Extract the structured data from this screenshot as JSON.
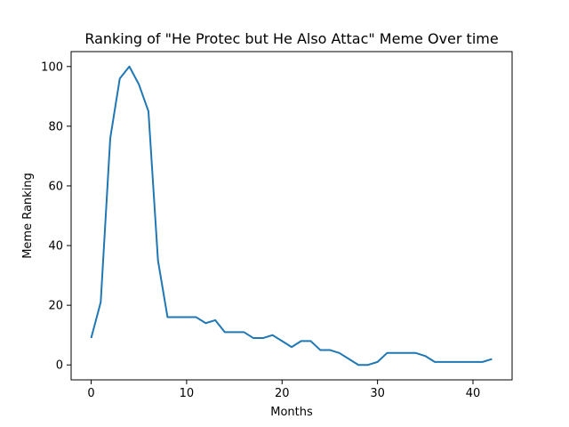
{
  "chart_data": {
    "type": "line",
    "title": "Ranking of \"He Protec but He Also Attac\" Meme Over time",
    "xlabel": "Months",
    "ylabel": "Meme Ranking",
    "xlim": [
      -2.1,
      44.1
    ],
    "ylim": [
      -5,
      105
    ],
    "xticks": [
      0,
      10,
      20,
      30,
      40
    ],
    "yticks": [
      0,
      20,
      40,
      60,
      80,
      100
    ],
    "grid": false,
    "line_color": "#1f77b4",
    "series": [
      {
        "x": [
          0,
          1,
          2,
          3,
          4,
          5,
          6,
          7,
          8,
          9,
          10,
          11,
          12,
          13,
          14,
          15,
          16,
          17,
          18,
          19,
          20,
          21,
          22,
          23,
          24,
          25,
          26,
          27,
          28,
          29,
          30,
          31,
          32,
          33,
          34,
          35,
          36,
          37,
          38,
          39,
          40,
          41,
          42
        ],
        "values": [
          9,
          21,
          76,
          96,
          100,
          94,
          85,
          35,
          16,
          16,
          16,
          16,
          14,
          15,
          11,
          11,
          11,
          9,
          9,
          10,
          8,
          6,
          8,
          8,
          5,
          5,
          4,
          2,
          0,
          0,
          1,
          4,
          4,
          4,
          4,
          3,
          1,
          1,
          1,
          1,
          1,
          1,
          2
        ]
      }
    ]
  }
}
